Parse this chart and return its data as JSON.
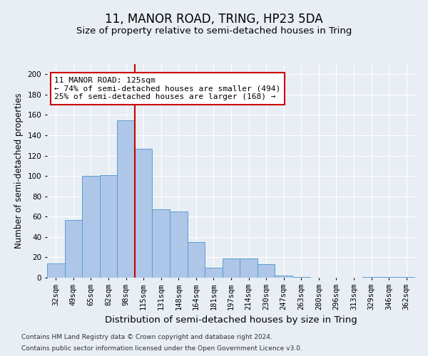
{
  "title": "11, MANOR ROAD, TRING, HP23 5DA",
  "subtitle": "Size of property relative to semi-detached houses in Tring",
  "xlabel": "Distribution of semi-detached houses by size in Tring",
  "ylabel": "Number of semi-detached properties",
  "categories": [
    "32sqm",
    "49sqm",
    "65sqm",
    "82sqm",
    "98sqm",
    "115sqm",
    "131sqm",
    "148sqm",
    "164sqm",
    "181sqm",
    "197sqm",
    "214sqm",
    "230sqm",
    "247sqm",
    "263sqm",
    "280sqm",
    "296sqm",
    "313sqm",
    "329sqm",
    "346sqm",
    "362sqm"
  ],
  "values": [
    14,
    57,
    100,
    101,
    155,
    127,
    67,
    65,
    35,
    10,
    19,
    19,
    13,
    2,
    1,
    0,
    0,
    0,
    1,
    1,
    1
  ],
  "bar_color": "#aec6e8",
  "bar_edgecolor": "#5a9fd4",
  "property_line_color": "#cc0000",
  "annotation_text": "11 MANOR ROAD: 125sqm\n← 74% of semi-detached houses are smaller (494)\n25% of semi-detached houses are larger (168) →",
  "annotation_box_color": "#cc0000",
  "annotation_bg": "#ffffff",
  "ylim": [
    0,
    210
  ],
  "yticks": [
    0,
    20,
    40,
    60,
    80,
    100,
    120,
    140,
    160,
    180,
    200
  ],
  "footnote1": "Contains HM Land Registry data © Crown copyright and database right 2024.",
  "footnote2": "Contains public sector information licensed under the Open Government Licence v3.0.",
  "background_color": "#e8eef4",
  "grid_color": "#ffffff",
  "title_fontsize": 12,
  "subtitle_fontsize": 9.5,
  "tick_fontsize": 7.5,
  "ylabel_fontsize": 8.5,
  "xlabel_fontsize": 9.5,
  "footnote_fontsize": 6.5
}
